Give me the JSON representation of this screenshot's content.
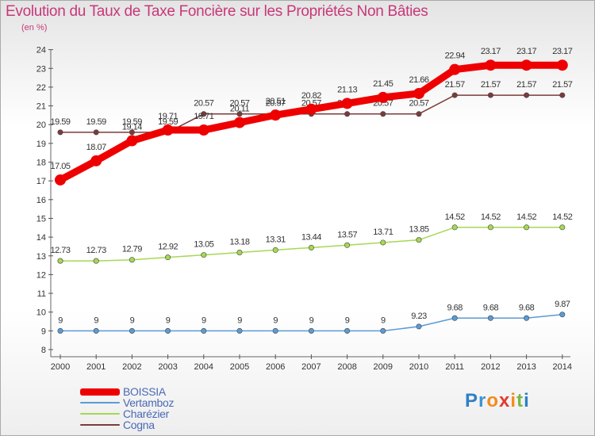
{
  "title": "Evolution du Taux de Taxe Foncière sur les Propriétés Non Bâties",
  "unit_label": "(en %)",
  "logo": {
    "text": "Proxiti"
  },
  "chart_data": {
    "type": "line",
    "categories": [
      "2000",
      "2001",
      "2002",
      "2003",
      "2004",
      "2005",
      "2006",
      "2007",
      "2008",
      "2009",
      "2010",
      "2011",
      "2012",
      "2013",
      "2014"
    ],
    "ylim": [
      8,
      24
    ],
    "yticks": [
      "8",
      "9",
      "10",
      "11",
      "12",
      "13",
      "14",
      "15",
      "16",
      "17",
      "18",
      "19",
      "20",
      "21",
      "22",
      "23",
      "24"
    ],
    "grid": false,
    "legend_position": "bottom-left",
    "series": [
      {
        "name": "BOISSIA",
        "color": "#ee0000",
        "emphasis": true,
        "values": [
          17.05,
          18.07,
          19.14,
          19.71,
          19.71,
          20.11,
          20.51,
          20.82,
          21.13,
          21.45,
          21.66,
          22.94,
          23.17,
          23.17,
          23.17
        ],
        "labels": [
          "17.05",
          "18.07",
          "19.14",
          "19.71",
          "19.71",
          "20.11",
          "20.51",
          "20.82",
          "21.13",
          "21.45",
          "21.66",
          "22.94",
          "23.17",
          "23.17",
          "23.17"
        ]
      },
      {
        "name": "Vertamboz",
        "color": "#5b9bd5",
        "emphasis": false,
        "values": [
          9,
          9,
          9,
          9,
          9,
          9,
          9,
          9,
          9,
          9,
          9.23,
          9.68,
          9.68,
          9.68,
          9.87
        ],
        "labels": [
          "9",
          "9",
          "9",
          "9",
          "9",
          "9",
          "9",
          "9",
          "9",
          "9",
          "9.23",
          "9.68",
          "9.68",
          "9.68",
          "9.87"
        ]
      },
      {
        "name": "Charézier",
        "color": "#a6d854",
        "emphasis": false,
        "values": [
          12.73,
          12.73,
          12.79,
          12.92,
          13.05,
          13.18,
          13.31,
          13.44,
          13.57,
          13.71,
          13.85,
          14.52,
          14.52,
          14.52,
          14.52
        ],
        "labels": [
          "12.73",
          "12.73",
          "12.79",
          "12.92",
          "13.05",
          "13.18",
          "13.31",
          "13.44",
          "13.57",
          "13.71",
          "13.85",
          "14.52",
          "14.52",
          "14.52",
          "14.52"
        ]
      },
      {
        "name": "Cogna",
        "color": "#7b3b3b",
        "emphasis": false,
        "values": [
          19.59,
          19.59,
          19.59,
          19.59,
          20.57,
          20.57,
          20.57,
          20.57,
          20.57,
          20.57,
          20.57,
          21.57,
          21.57,
          21.57,
          21.57
        ],
        "labels": [
          "19.59",
          "19.59",
          "19.59",
          "19.59",
          "20.57",
          "20.57",
          "20.57",
          "20.57",
          "20.57",
          "20.57",
          "20.57",
          "21.57",
          "21.57",
          "21.57",
          "21.57"
        ]
      }
    ]
  }
}
